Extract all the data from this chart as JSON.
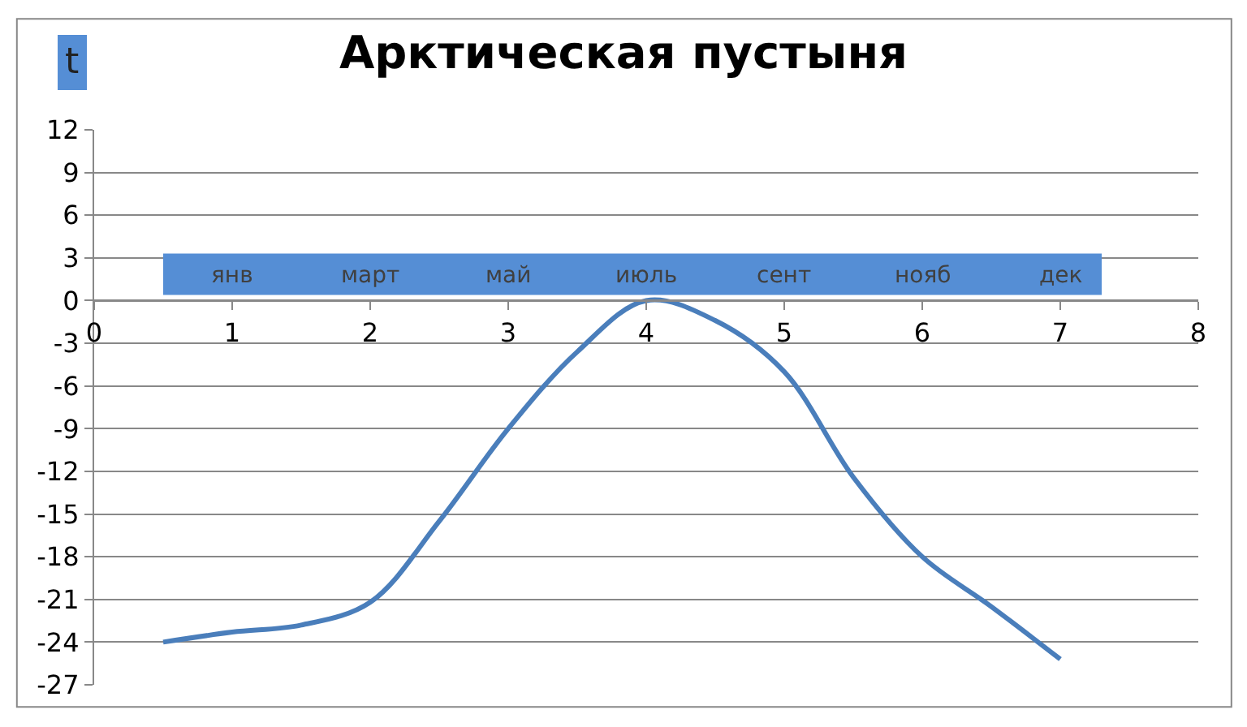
{
  "chart_data": {
    "type": "line",
    "title": "Арктическая пустыня",
    "ylabel": "t",
    "x": [
      0.5,
      1,
      1.5,
      2,
      2.5,
      3,
      3.5,
      4,
      4.5,
      5,
      5.5,
      6,
      6.5,
      7
    ],
    "series": [
      {
        "color": "#4a7ebb",
        "values": [
          -24,
          -23.3,
          -22.8,
          -21.2,
          -15.5,
          -9,
          -3.6,
          0,
          -1.4,
          -5,
          -12.4,
          -18,
          -21.5,
          -25.2
        ]
      }
    ],
    "xlim": [
      0,
      8
    ],
    "xticks": [
      0,
      1,
      2,
      3,
      4,
      5,
      6,
      7,
      8
    ],
    "ylim": [
      -27,
      12
    ],
    "yticks": [
      12,
      9,
      6,
      3,
      0,
      -3,
      -6,
      -9,
      -12,
      -15,
      -18,
      -21,
      -24,
      -27
    ],
    "grid": "y",
    "marker": "none",
    "line_style": "solid",
    "annotations": [
      "янв",
      "март",
      "май",
      "июль",
      "сент",
      "нояб",
      "дек"
    ]
  }
}
